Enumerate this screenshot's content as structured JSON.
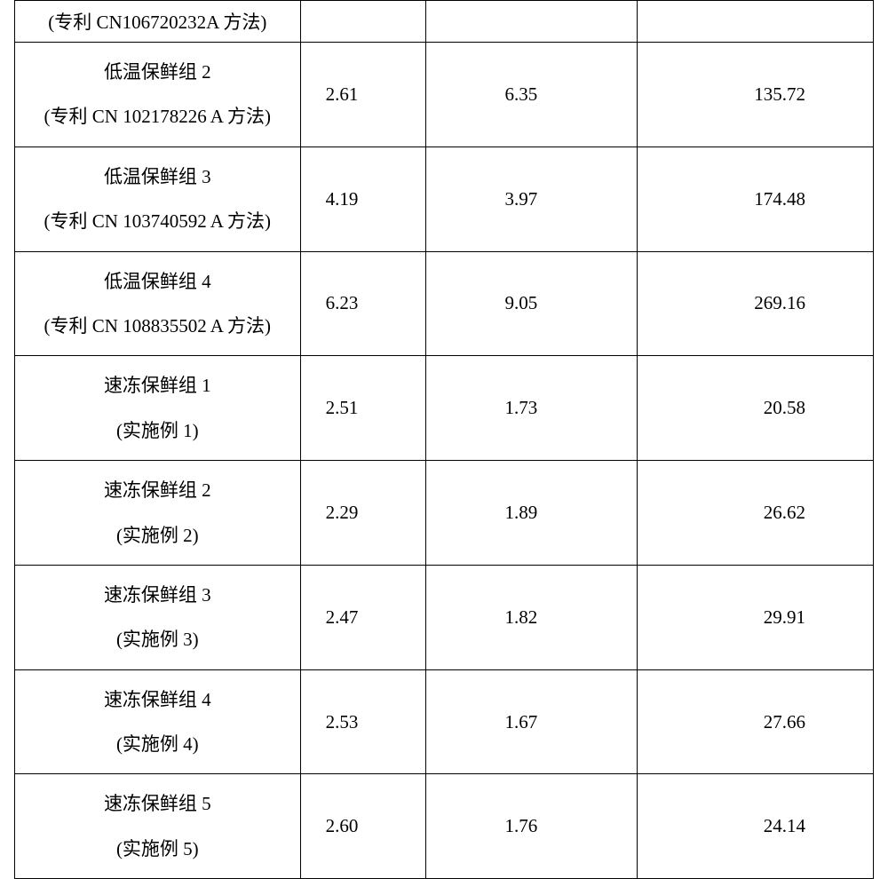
{
  "table": {
    "background_color": "#ffffff",
    "border_color": "#000000",
    "text_color": "#000000",
    "font_size": 21,
    "rows": [
      {
        "label_top": "",
        "label_bottom": "(专利 CN106720232A 方法)",
        "v1": "",
        "v2": "",
        "v3": "",
        "short": true
      },
      {
        "label_top": "低温保鲜组 2",
        "label_bottom": "(专利 CN 102178226 A 方法)",
        "v1": "2.61",
        "v2": "6.35",
        "v3": "135.72"
      },
      {
        "label_top": "低温保鲜组 3",
        "label_bottom": "(专利 CN 103740592 A 方法)",
        "v1": "4.19",
        "v2": "3.97",
        "v3": "174.48"
      },
      {
        "label_top": "低温保鲜组 4",
        "label_bottom": "(专利 CN 108835502 A 方法)",
        "v1": "6.23",
        "v2": "9.05",
        "v3": "269.16"
      },
      {
        "label_top": "速冻保鲜组 1",
        "label_bottom": "(实施例 1)",
        "v1": "2.51",
        "v2": "1.73",
        "v3": "20.58"
      },
      {
        "label_top": "速冻保鲜组 2",
        "label_bottom": "(实施例 2)",
        "v1": "2.29",
        "v2": "1.89",
        "v3": "26.62"
      },
      {
        "label_top": "速冻保鲜组 3",
        "label_bottom": "(实施例 3)",
        "v1": "2.47",
        "v2": "1.82",
        "v3": "29.91"
      },
      {
        "label_top": "速冻保鲜组 4",
        "label_bottom": "(实施例 4)",
        "v1": "2.53",
        "v2": "1.67",
        "v3": "27.66"
      },
      {
        "label_top": "速冻保鲜组 5",
        "label_bottom": "(实施例 5)",
        "v1": "2.60",
        "v2": "1.76",
        "v3": "24.14"
      }
    ]
  }
}
